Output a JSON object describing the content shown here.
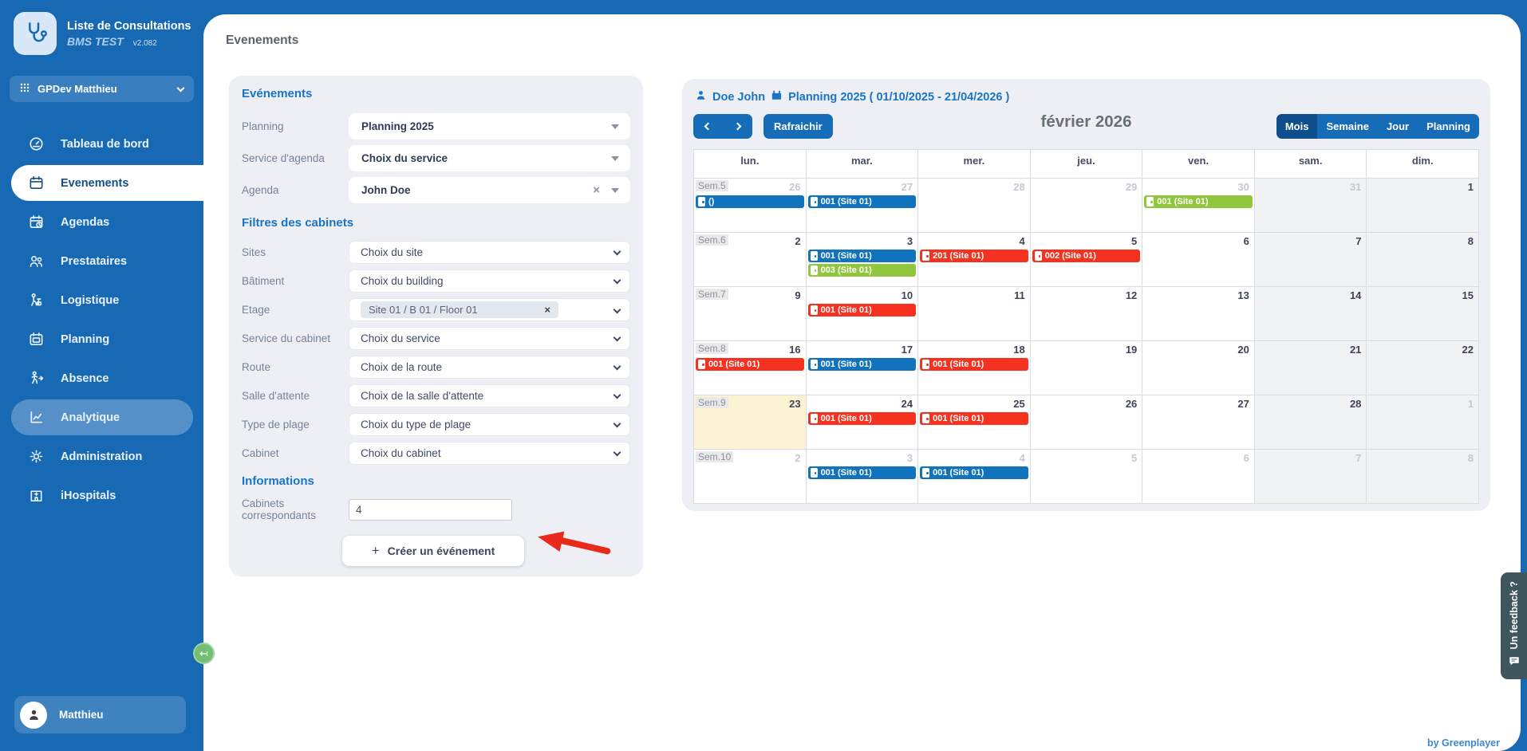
{
  "app": {
    "title": "Liste de Consultations",
    "subtitle": "BMS TEST",
    "version": "v2.082",
    "workspace": "GPDev Matthieu",
    "user": "Matthieu",
    "footer": "by Greenplayer",
    "feedback_label": "Un feedback ?"
  },
  "page_title": "Evenements",
  "sidebar": {
    "items": [
      {
        "icon": "dashboard-icon",
        "label": "Tableau de bord"
      },
      {
        "icon": "calendar-icon",
        "label": "Evenements",
        "active": true
      },
      {
        "icon": "calendar-clock-icon",
        "label": "Agendas"
      },
      {
        "icon": "people-icon",
        "label": "Prestataires"
      },
      {
        "icon": "logistics-icon",
        "label": "Logistique"
      },
      {
        "icon": "planning-icon",
        "label": "Planning"
      },
      {
        "icon": "absence-icon",
        "label": "Absence"
      },
      {
        "icon": "analytics-icon",
        "label": "Analytique",
        "highlighted": true
      },
      {
        "icon": "gear-icon",
        "label": "Administration"
      },
      {
        "icon": "hospital-icon",
        "label": "iHospitals"
      }
    ]
  },
  "form": {
    "events_heading": "Evénements",
    "events_fields": [
      {
        "label": "Planning",
        "value": "Planning 2025",
        "clearable": false
      },
      {
        "label": "Service d'agenda",
        "value": "Choix du service",
        "clearable": false
      },
      {
        "label": "Agenda",
        "value": "John Doe",
        "clearable": true
      }
    ],
    "filters_heading": "Filtres des cabinets",
    "filter_fields": [
      {
        "label": "Sites",
        "value": "Choix du site"
      },
      {
        "label": "Bâtiment",
        "value": "Choix du building"
      },
      {
        "label": "Etage",
        "chip": "Site 01 / B 01 / Floor 01"
      },
      {
        "label": "Service du cabinet",
        "value": "Choix du service"
      },
      {
        "label": "Route",
        "value": "Choix de la route"
      },
      {
        "label": "Salle d'attente",
        "value": "Choix de la salle d'attente"
      },
      {
        "label": "Type de plage",
        "value": "Choix du type de plage"
      },
      {
        "label": "Cabinet",
        "value": "Choix du cabinet"
      }
    ],
    "info_heading": "Informations",
    "info_label": "Cabinets correspondants",
    "info_value": "4",
    "create_button": {
      "icon": "+",
      "label": "Créer un événement"
    }
  },
  "calendar": {
    "owner": "Doe John",
    "plan_label": "Planning 2025 ( 01/10/2025 - 21/04/2026 )",
    "month_label": "février 2026",
    "refresh_label": "Rafraichir",
    "views": [
      "Mois",
      "Semaine",
      "Jour",
      "Planning"
    ],
    "active_view": "Mois",
    "day_headers": [
      "lun.",
      "mar.",
      "mer.",
      "jeu.",
      "ven.",
      "sam.",
      "dim."
    ],
    "weeks": [
      {
        "label": "Sem.5",
        "days": [
          {
            "num": 26,
            "muted": true,
            "events": [
              {
                "title": "()",
                "color": "blue"
              }
            ]
          },
          {
            "num": 27,
            "muted": true,
            "events": [
              {
                "title": "001 (Site 01)",
                "color": "blue"
              }
            ]
          },
          {
            "num": 28,
            "muted": true,
            "events": []
          },
          {
            "num": 29,
            "muted": true,
            "events": []
          },
          {
            "num": 30,
            "muted": true,
            "events": [
              {
                "title": "001 (Site 01)",
                "color": "green"
              }
            ]
          },
          {
            "num": 31,
            "muted": true,
            "events": []
          },
          {
            "num": 1,
            "muted": false,
            "events": []
          }
        ]
      },
      {
        "label": "Sem.6",
        "days": [
          {
            "num": 2,
            "events": []
          },
          {
            "num": 3,
            "events": [
              {
                "title": "001 (Site 01)",
                "color": "blue"
              },
              {
                "title": "003 (Site 01)",
                "color": "green"
              }
            ]
          },
          {
            "num": 4,
            "events": [
              {
                "title": "201 (Site 01)",
                "color": "red"
              }
            ]
          },
          {
            "num": 5,
            "events": [
              {
                "title": "002 (Site 01)",
                "color": "red"
              }
            ]
          },
          {
            "num": 6,
            "events": []
          },
          {
            "num": 7,
            "events": []
          },
          {
            "num": 8,
            "events": []
          }
        ]
      },
      {
        "label": "Sem.7",
        "days": [
          {
            "num": 9,
            "events": []
          },
          {
            "num": 10,
            "events": [
              {
                "title": "001 (Site 01)",
                "color": "red"
              }
            ]
          },
          {
            "num": 11,
            "events": []
          },
          {
            "num": 12,
            "events": []
          },
          {
            "num": 13,
            "events": []
          },
          {
            "num": 14,
            "events": []
          },
          {
            "num": 15,
            "events": []
          }
        ]
      },
      {
        "label": "Sem.8",
        "days": [
          {
            "num": 16,
            "events": [
              {
                "title": "001 (Site 01)",
                "color": "red"
              }
            ]
          },
          {
            "num": 17,
            "events": [
              {
                "title": "001 (Site 01)",
                "color": "blue"
              }
            ]
          },
          {
            "num": 18,
            "events": [
              {
                "title": "001 (Site 01)",
                "color": "red"
              }
            ]
          },
          {
            "num": 19,
            "events": []
          },
          {
            "num": 20,
            "events": []
          },
          {
            "num": 21,
            "events": []
          },
          {
            "num": 22,
            "events": []
          }
        ]
      },
      {
        "label": "Sem.9",
        "days": [
          {
            "num": 23,
            "today": true,
            "events": []
          },
          {
            "num": 24,
            "events": [
              {
                "title": "001 (Site 01)",
                "color": "red"
              }
            ]
          },
          {
            "num": 25,
            "events": [
              {
                "title": "001 (Site 01)",
                "color": "red"
              }
            ]
          },
          {
            "num": 26,
            "events": []
          },
          {
            "num": 27,
            "events": []
          },
          {
            "num": 28,
            "events": []
          },
          {
            "num": 1,
            "muted": true,
            "events": []
          }
        ]
      },
      {
        "label": "Sem.10",
        "days": [
          {
            "num": 2,
            "muted": true,
            "events": []
          },
          {
            "num": 3,
            "muted": true,
            "events": [
              {
                "title": "001 (Site 01)",
                "color": "blue"
              }
            ]
          },
          {
            "num": 4,
            "muted": true,
            "events": [
              {
                "title": "001 (Site 01)",
                "color": "blue"
              }
            ]
          },
          {
            "num": 5,
            "muted": true,
            "events": []
          },
          {
            "num": 6,
            "muted": true,
            "events": []
          },
          {
            "num": 7,
            "muted": true,
            "events": []
          },
          {
            "num": 8,
            "muted": true,
            "events": []
          }
        ]
      }
    ]
  },
  "colors": {
    "sidebar_blue": "#1769b4",
    "accent_blue": "#1a74c5",
    "button_blue": "#176cb8",
    "active_view_blue": "#0f4e8c",
    "event_blue": "#1173bd",
    "event_red": "#f5321f",
    "event_green": "#91c73c",
    "today_bg": "#fbf3d3",
    "annotation_arrow_red": "#e8291c",
    "collapse_green": "#74bf74"
  }
}
